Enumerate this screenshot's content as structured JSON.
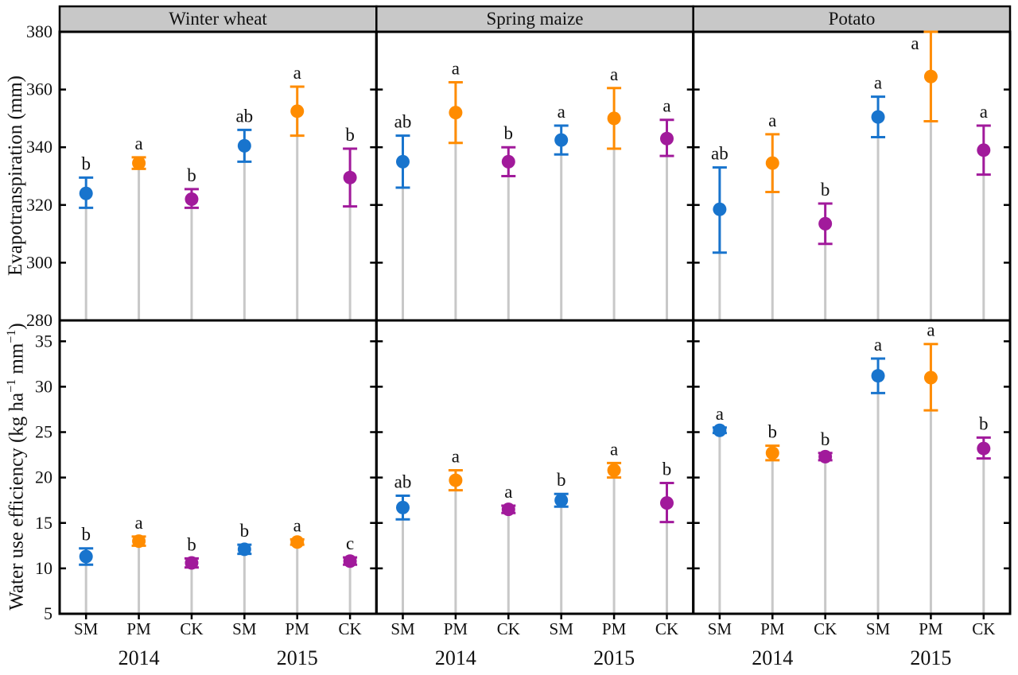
{
  "chart_data": {
    "type": "scatter",
    "description": "Mean ± error bar points with gray drop lines, significance letters above each bar",
    "layout": {
      "columns": [
        "Winter wheat",
        "Spring maize",
        "Potato"
      ],
      "rows": [
        {
          "ylabel": "Evapotranspiration (mm)",
          "ylim": [
            280,
            380
          ],
          "yticks": [
            280,
            300,
            320,
            340,
            360,
            380
          ]
        },
        {
          "ylabel": "Water use efficiency (kg ha−1 mm−1)",
          "ylabel_parts": [
            "Water use efficiency (kg ha",
            "−1",
            " mm",
            "−1",
            ")"
          ],
          "ylim": [
            5,
            37.3
          ],
          "yticks": [
            5,
            10,
            15,
            20,
            25,
            30,
            35
          ]
        }
      ],
      "x_categories": [
        "SM",
        "PM",
        "CK",
        "SM",
        "PM",
        "CK"
      ],
      "year_labels": [
        "2014",
        "2015"
      ],
      "series_colors": {
        "SM": "#1874cd",
        "PM": "#ff8c00",
        "CK": "#a11a9b"
      },
      "dropline_color": "#c8c8c8",
      "header_fill": "#c8c8c8",
      "grid": false,
      "legend": "none"
    },
    "panels": [
      {
        "row": 0,
        "col": 0,
        "crop": "Winter wheat",
        "measure": "Evapotranspiration (mm)",
        "points": [
          {
            "treatment": "SM",
            "year": "2014",
            "mean": 324,
            "lo": 319,
            "hi": 329.5,
            "letter": "b"
          },
          {
            "treatment": "PM",
            "year": "2014",
            "mean": 334.5,
            "lo": 332.5,
            "hi": 336.5,
            "letter": "a"
          },
          {
            "treatment": "CK",
            "year": "2014",
            "mean": 322,
            "lo": 319,
            "hi": 325.5,
            "letter": "b"
          },
          {
            "treatment": "SM",
            "year": "2015",
            "mean": 340.5,
            "lo": 335,
            "hi": 346,
            "letter": "ab"
          },
          {
            "treatment": "PM",
            "year": "2015",
            "mean": 352.5,
            "lo": 344,
            "hi": 361,
            "letter": "a"
          },
          {
            "treatment": "CK",
            "year": "2015",
            "mean": 329.5,
            "lo": 319.5,
            "hi": 339.5,
            "letter": "b"
          }
        ]
      },
      {
        "row": 0,
        "col": 1,
        "crop": "Spring maize",
        "measure": "Evapotranspiration (mm)",
        "points": [
          {
            "treatment": "SM",
            "year": "2014",
            "mean": 335,
            "lo": 326,
            "hi": 344,
            "letter": "ab"
          },
          {
            "treatment": "PM",
            "year": "2014",
            "mean": 352,
            "lo": 341.5,
            "hi": 362.5,
            "letter": "a"
          },
          {
            "treatment": "CK",
            "year": "2014",
            "mean": 335,
            "lo": 330,
            "hi": 340,
            "letter": "b"
          },
          {
            "treatment": "SM",
            "year": "2015",
            "mean": 342.5,
            "lo": 337.5,
            "hi": 347.5,
            "letter": "a"
          },
          {
            "treatment": "PM",
            "year": "2015",
            "mean": 350,
            "lo": 339.5,
            "hi": 360.5,
            "letter": "a"
          },
          {
            "treatment": "CK",
            "year": "2015",
            "mean": 343,
            "lo": 337,
            "hi": 349.5,
            "letter": "a"
          }
        ]
      },
      {
        "row": 0,
        "col": 2,
        "crop": "Potato",
        "measure": "Evapotranspiration (mm)",
        "points": [
          {
            "treatment": "SM",
            "year": "2014",
            "mean": 318.5,
            "lo": 303.5,
            "hi": 333,
            "letter": "ab"
          },
          {
            "treatment": "PM",
            "year": "2014",
            "mean": 334.5,
            "lo": 324.5,
            "hi": 344.5,
            "letter": "a"
          },
          {
            "treatment": "CK",
            "year": "2014",
            "mean": 313.5,
            "lo": 306.5,
            "hi": 320.5,
            "letter": "b"
          },
          {
            "treatment": "SM",
            "year": "2015",
            "mean": 350.5,
            "lo": 343.5,
            "hi": 357.5,
            "letter": "a"
          },
          {
            "treatment": "PM",
            "year": "2015",
            "mean": 364.5,
            "lo": 349,
            "hi": 380,
            "letter": "a"
          },
          {
            "treatment": "CK",
            "year": "2015",
            "mean": 339,
            "lo": 330.5,
            "hi": 347.5,
            "letter": "a"
          }
        ]
      },
      {
        "row": 1,
        "col": 0,
        "crop": "Winter wheat",
        "measure": "Water use efficiency (kg ha−1 mm−1)",
        "points": [
          {
            "treatment": "SM",
            "year": "2014",
            "mean": 11.3,
            "lo": 10.4,
            "hi": 12.2,
            "letter": "b"
          },
          {
            "treatment": "PM",
            "year": "2014",
            "mean": 13.0,
            "lo": 12.5,
            "hi": 13.5,
            "letter": "a"
          },
          {
            "treatment": "CK",
            "year": "2014",
            "mean": 10.6,
            "lo": 10.1,
            "hi": 11.1,
            "letter": "b"
          },
          {
            "treatment": "SM",
            "year": "2015",
            "mean": 12.1,
            "lo": 11.6,
            "hi": 12.6,
            "letter": "b"
          },
          {
            "treatment": "PM",
            "year": "2015",
            "mean": 12.9,
            "lo": 12.6,
            "hi": 13.2,
            "letter": "a"
          },
          {
            "treatment": "CK",
            "year": "2015",
            "mean": 10.8,
            "lo": 10.4,
            "hi": 11.2,
            "letter": "c"
          }
        ]
      },
      {
        "row": 1,
        "col": 1,
        "crop": "Spring maize",
        "measure": "Water use efficiency (kg ha−1 mm−1)",
        "points": [
          {
            "treatment": "SM",
            "year": "2014",
            "mean": 16.7,
            "lo": 15.4,
            "hi": 18.0,
            "letter": "ab"
          },
          {
            "treatment": "PM",
            "year": "2014",
            "mean": 19.7,
            "lo": 18.6,
            "hi": 20.8,
            "letter": "a"
          },
          {
            "treatment": "CK",
            "year": "2014",
            "mean": 16.5,
            "lo": 16.1,
            "hi": 16.9,
            "letter": "a"
          },
          {
            "treatment": "SM",
            "year": "2015",
            "mean": 17.5,
            "lo": 16.8,
            "hi": 18.2,
            "letter": "b"
          },
          {
            "treatment": "PM",
            "year": "2015",
            "mean": 20.8,
            "lo": 20.0,
            "hi": 21.6,
            "letter": "a"
          },
          {
            "treatment": "CK",
            "year": "2015",
            "mean": 17.2,
            "lo": 15.1,
            "hi": 19.4,
            "letter": "b"
          }
        ]
      },
      {
        "row": 1,
        "col": 2,
        "crop": "Potato",
        "measure": "Water use efficiency (kg ha−1 mm−1)",
        "points": [
          {
            "treatment": "SM",
            "year": "2014",
            "mean": 25.2,
            "lo": 24.9,
            "hi": 25.5,
            "letter": "a"
          },
          {
            "treatment": "PM",
            "year": "2014",
            "mean": 22.7,
            "lo": 21.9,
            "hi": 23.5,
            "letter": "b"
          },
          {
            "treatment": "CK",
            "year": "2014",
            "mean": 22.3,
            "lo": 21.9,
            "hi": 22.7,
            "letter": "b"
          },
          {
            "treatment": "SM",
            "year": "2015",
            "mean": 31.2,
            "lo": 29.3,
            "hi": 33.1,
            "letter": "a"
          },
          {
            "treatment": "PM",
            "year": "2015",
            "mean": 31.0,
            "lo": 27.4,
            "hi": 34.7,
            "letter": "a"
          },
          {
            "treatment": "CK",
            "year": "2015",
            "mean": 23.2,
            "lo": 22.1,
            "hi": 24.4,
            "letter": "b"
          }
        ]
      }
    ]
  }
}
